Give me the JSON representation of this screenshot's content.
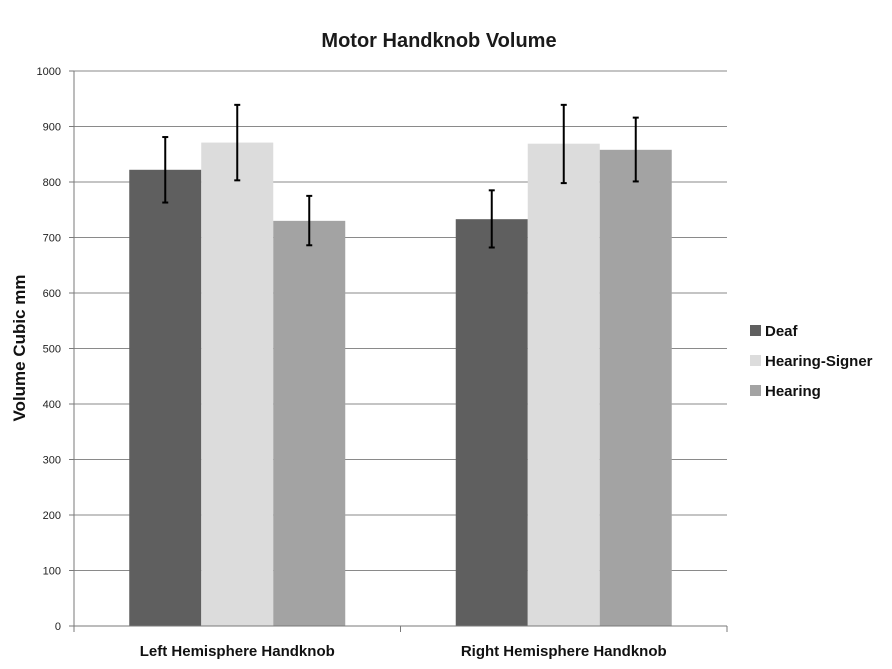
{
  "chart_data": {
    "type": "bar",
    "title": "Motor Handknob Volume",
    "xlabel": "",
    "ylabel": "Volume Cubic mm",
    "ylim": [
      0,
      1000
    ],
    "yticks": [
      0,
      100,
      200,
      300,
      400,
      500,
      600,
      700,
      800,
      900,
      1000
    ],
    "grid": true,
    "legend_position": "right",
    "categories": [
      "Left Hemisphere Handknob",
      "Right Hemisphere Handknob"
    ],
    "series": [
      {
        "name": "Deaf",
        "color": "#5f5f5f",
        "values": [
          822,
          733
        ],
        "error_low": [
          763,
          682
        ],
        "error_high": [
          881,
          785
        ]
      },
      {
        "name": "Hearing-Signer",
        "color": "#dcdcdc",
        "values": [
          871,
          869
        ],
        "error_low": [
          803,
          798
        ],
        "error_high": [
          939,
          939
        ]
      },
      {
        "name": "Hearing",
        "color": "#a3a3a3",
        "values": [
          730,
          858
        ],
        "error_low": [
          686,
          801
        ],
        "error_high": [
          775,
          916
        ]
      }
    ]
  }
}
